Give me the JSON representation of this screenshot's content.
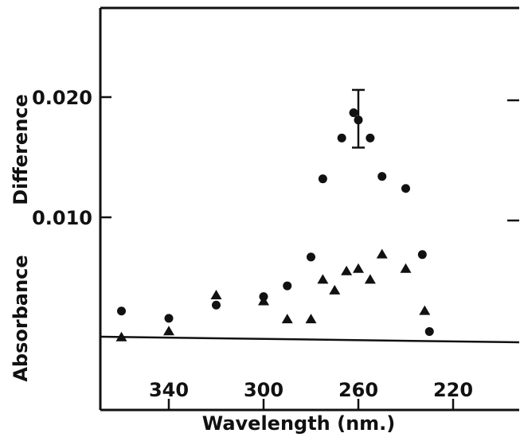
{
  "chart_data": {
    "type": "scatter",
    "title": "",
    "xlabel": "Wavelength (nm.)",
    "ylabel": "Absorbance Difference",
    "xlim": [
      370,
      200
    ],
    "ylim": [
      -0.0005,
      0.028
    ],
    "x_ticks": [
      340,
      300,
      260,
      220
    ],
    "x_tick_labels": [
      "340",
      "300",
      "260",
      "220"
    ],
    "y_ticks": [
      0.01,
      0.02
    ],
    "y_tick_labels": [
      "0.010",
      "0.020"
    ],
    "y_label_words": [
      "Absorbance",
      "Difference"
    ],
    "reference_line_y": 0,
    "grid": false,
    "legend": "none",
    "series": [
      {
        "marker": "circle",
        "color": "#111111",
        "points": [
          {
            "x": 360,
            "y": 0.0022
          },
          {
            "x": 340,
            "y": 0.0016
          },
          {
            "x": 320,
            "y": 0.0027
          },
          {
            "x": 300,
            "y": 0.0034
          },
          {
            "x": 290,
            "y": 0.0043
          },
          {
            "x": 280,
            "y": 0.0067
          },
          {
            "x": 275,
            "y": 0.0132
          },
          {
            "x": 267,
            "y": 0.0166
          },
          {
            "x": 262,
            "y": 0.0187
          },
          {
            "x": 260,
            "y": 0.0181
          },
          {
            "x": 255,
            "y": 0.0166
          },
          {
            "x": 250,
            "y": 0.0134
          },
          {
            "x": 240,
            "y": 0.0124
          },
          {
            "x": 233,
            "y": 0.0069
          },
          {
            "x": 230,
            "y": 0.0005
          }
        ]
      },
      {
        "marker": "triangle",
        "color": "#111111",
        "points": [
          {
            "x": 360,
            "y": 0.0
          },
          {
            "x": 340,
            "y": 0.0005
          },
          {
            "x": 320,
            "y": 0.0035
          },
          {
            "x": 300,
            "y": 0.003
          },
          {
            "x": 290,
            "y": 0.0015
          },
          {
            "x": 280,
            "y": 0.0015
          },
          {
            "x": 275,
            "y": 0.0048
          },
          {
            "x": 270,
            "y": 0.0039
          },
          {
            "x": 265,
            "y": 0.0055
          },
          {
            "x": 260,
            "y": 0.0057
          },
          {
            "x": 255,
            "y": 0.0048
          },
          {
            "x": 250,
            "y": 0.0069
          },
          {
            "x": 240,
            "y": 0.0057
          },
          {
            "x": 232,
            "y": 0.0022
          }
        ]
      }
    ],
    "error_bars": [
      {
        "x": 260,
        "y_low": 0.0158,
        "y_high": 0.0206
      }
    ]
  }
}
